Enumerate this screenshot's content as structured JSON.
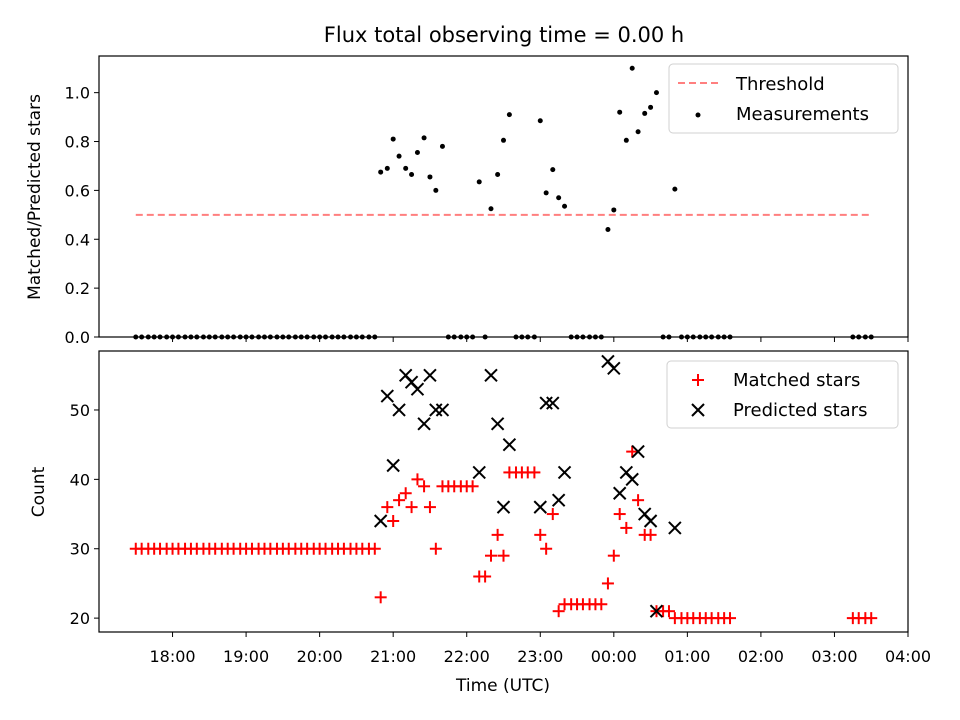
{
  "chart_data": [
    {
      "type": "scatter",
      "title": "Flux total observing time = 0.00 h",
      "xlabel": "",
      "ylabel": "Matched/Predicted stars",
      "xlim": [
        17.0,
        28.0
      ],
      "ylim": [
        0.0,
        1.15
      ],
      "yticks": [
        0.0,
        0.2,
        0.4,
        0.6,
        0.8,
        1.0
      ],
      "ytick_labels": [
        "0.0",
        "0.2",
        "0.4",
        "0.6",
        "0.8",
        "1.0"
      ],
      "threshold": {
        "name": "Threshold",
        "value": 0.5,
        "x_range": [
          17.5,
          27.5
        ],
        "color": "#ff7f7f"
      },
      "legend_position": "top-right",
      "series": [
        {
          "name": "Measurements",
          "color": "#000000",
          "marker": "dot",
          "points": [
            [
              17.5,
              0
            ],
            [
              17.58,
              0
            ],
            [
              17.67,
              0
            ],
            [
              17.75,
              0
            ],
            [
              17.83,
              0
            ],
            [
              17.92,
              0
            ],
            [
              18.0,
              0
            ],
            [
              18.08,
              0
            ],
            [
              18.17,
              0
            ],
            [
              18.25,
              0
            ],
            [
              18.33,
              0
            ],
            [
              18.42,
              0
            ],
            [
              18.5,
              0
            ],
            [
              18.58,
              0
            ],
            [
              18.67,
              0
            ],
            [
              18.75,
              0
            ],
            [
              18.83,
              0
            ],
            [
              18.92,
              0
            ],
            [
              19.0,
              0
            ],
            [
              19.08,
              0
            ],
            [
              19.17,
              0
            ],
            [
              19.25,
              0
            ],
            [
              19.33,
              0
            ],
            [
              19.42,
              0
            ],
            [
              19.5,
              0
            ],
            [
              19.58,
              0
            ],
            [
              19.67,
              0
            ],
            [
              19.75,
              0
            ],
            [
              19.83,
              0
            ],
            [
              19.92,
              0
            ],
            [
              20.0,
              0
            ],
            [
              20.08,
              0
            ],
            [
              20.17,
              0
            ],
            [
              20.25,
              0
            ],
            [
              20.33,
              0
            ],
            [
              20.42,
              0
            ],
            [
              20.5,
              0
            ],
            [
              20.58,
              0
            ],
            [
              20.67,
              0
            ],
            [
              20.75,
              0
            ],
            [
              20.83,
              0.675
            ],
            [
              20.92,
              0.69
            ],
            [
              21.0,
              0.81
            ],
            [
              21.08,
              0.74
            ],
            [
              21.17,
              0.69
            ],
            [
              21.25,
              0.665
            ],
            [
              21.33,
              0.755
            ],
            [
              21.42,
              0.815
            ],
            [
              21.5,
              0.655
            ],
            [
              21.58,
              0.6
            ],
            [
              21.67,
              0.78
            ],
            [
              21.75,
              0
            ],
            [
              21.83,
              0
            ],
            [
              21.92,
              0
            ],
            [
              22.0,
              0
            ],
            [
              22.08,
              0
            ],
            [
              22.17,
              0.635
            ],
            [
              22.25,
              0
            ],
            [
              22.33,
              0.525
            ],
            [
              22.42,
              0.665
            ],
            [
              22.5,
              0.805
            ],
            [
              22.58,
              0.91
            ],
            [
              22.67,
              0
            ],
            [
              22.75,
              0
            ],
            [
              22.83,
              0
            ],
            [
              22.92,
              0
            ],
            [
              23.0,
              0.885
            ],
            [
              23.08,
              0.59
            ],
            [
              23.17,
              0.685
            ],
            [
              23.25,
              0.57
            ],
            [
              23.33,
              0.535
            ],
            [
              23.42,
              0
            ],
            [
              23.5,
              0
            ],
            [
              23.58,
              0
            ],
            [
              23.67,
              0
            ],
            [
              23.75,
              0
            ],
            [
              23.83,
              0
            ],
            [
              23.92,
              0.44
            ],
            [
              24.0,
              0.52
            ],
            [
              24.08,
              0.92
            ],
            [
              24.17,
              0.805
            ],
            [
              24.25,
              1.1
            ],
            [
              24.33,
              0.84
            ],
            [
              24.42,
              0.915
            ],
            [
              24.5,
              0.94
            ],
            [
              24.58,
              1.0
            ],
            [
              24.67,
              0
            ],
            [
              24.75,
              0
            ],
            [
              24.83,
              0.605
            ],
            [
              24.92,
              0
            ],
            [
              25.0,
              0
            ],
            [
              25.08,
              0
            ],
            [
              25.17,
              0
            ],
            [
              25.25,
              0
            ],
            [
              25.33,
              0
            ],
            [
              25.42,
              0
            ],
            [
              25.5,
              0
            ],
            [
              25.58,
              0
            ],
            [
              27.25,
              0
            ],
            [
              27.33,
              0
            ],
            [
              27.42,
              0
            ],
            [
              27.5,
              0
            ]
          ]
        }
      ]
    },
    {
      "type": "scatter",
      "title": "",
      "xlabel": "Time (UTC)",
      "ylabel": "Count",
      "xlim": [
        17.0,
        28.0
      ],
      "ylim": [
        18.0,
        58.5
      ],
      "yticks": [
        20,
        30,
        40,
        50
      ],
      "ytick_labels": [
        "20",
        "30",
        "40",
        "50"
      ],
      "xticks": [
        18,
        19,
        20,
        21,
        22,
        23,
        24,
        25,
        26,
        27,
        28
      ],
      "xtick_labels": [
        "18:00",
        "19:00",
        "20:00",
        "21:00",
        "22:00",
        "23:00",
        "00:00",
        "01:00",
        "02:00",
        "03:00",
        "04:00"
      ],
      "legend_position": "top-right",
      "series": [
        {
          "name": "Matched stars",
          "color": "#ff0000",
          "marker": "plus",
          "points": [
            [
              17.5,
              30
            ],
            [
              17.58,
              30
            ],
            [
              17.67,
              30
            ],
            [
              17.75,
              30
            ],
            [
              17.83,
              30
            ],
            [
              17.92,
              30
            ],
            [
              18.0,
              30
            ],
            [
              18.08,
              30
            ],
            [
              18.17,
              30
            ],
            [
              18.25,
              30
            ],
            [
              18.33,
              30
            ],
            [
              18.42,
              30
            ],
            [
              18.5,
              30
            ],
            [
              18.58,
              30
            ],
            [
              18.67,
              30
            ],
            [
              18.75,
              30
            ],
            [
              18.83,
              30
            ],
            [
              18.92,
              30
            ],
            [
              19.0,
              30
            ],
            [
              19.08,
              30
            ],
            [
              19.17,
              30
            ],
            [
              19.25,
              30
            ],
            [
              19.33,
              30
            ],
            [
              19.42,
              30
            ],
            [
              19.5,
              30
            ],
            [
              19.58,
              30
            ],
            [
              19.67,
              30
            ],
            [
              19.75,
              30
            ],
            [
              19.83,
              30
            ],
            [
              19.92,
              30
            ],
            [
              20.0,
              30
            ],
            [
              20.08,
              30
            ],
            [
              20.17,
              30
            ],
            [
              20.25,
              30
            ],
            [
              20.33,
              30
            ],
            [
              20.42,
              30
            ],
            [
              20.5,
              30
            ],
            [
              20.58,
              30
            ],
            [
              20.67,
              30
            ],
            [
              20.75,
              30
            ],
            [
              20.83,
              23
            ],
            [
              20.92,
              36
            ],
            [
              21.0,
              34
            ],
            [
              21.08,
              37
            ],
            [
              21.17,
              38
            ],
            [
              21.25,
              36
            ],
            [
              21.33,
              40
            ],
            [
              21.42,
              39
            ],
            [
              21.5,
              36
            ],
            [
              21.58,
              30
            ],
            [
              21.67,
              39
            ],
            [
              21.75,
              39
            ],
            [
              21.83,
              39
            ],
            [
              21.92,
              39
            ],
            [
              22.0,
              39
            ],
            [
              22.08,
              39
            ],
            [
              22.17,
              26
            ],
            [
              22.25,
              26
            ],
            [
              22.33,
              29
            ],
            [
              22.42,
              32
            ],
            [
              22.5,
              29
            ],
            [
              22.58,
              41
            ],
            [
              22.67,
              41
            ],
            [
              22.75,
              41
            ],
            [
              22.83,
              41
            ],
            [
              22.92,
              41
            ],
            [
              23.0,
              32
            ],
            [
              23.08,
              30
            ],
            [
              23.17,
              35
            ],
            [
              23.25,
              21
            ],
            [
              23.33,
              22
            ],
            [
              23.42,
              22
            ],
            [
              23.5,
              22
            ],
            [
              23.58,
              22
            ],
            [
              23.67,
              22
            ],
            [
              23.75,
              22
            ],
            [
              23.83,
              22
            ],
            [
              23.92,
              25
            ],
            [
              24.0,
              29
            ],
            [
              24.08,
              35
            ],
            [
              24.17,
              33
            ],
            [
              24.25,
              44
            ],
            [
              24.33,
              37
            ],
            [
              24.42,
              32
            ],
            [
              24.5,
              32
            ],
            [
              24.58,
              21
            ],
            [
              24.67,
              21
            ],
            [
              24.75,
              21
            ],
            [
              24.83,
              20
            ],
            [
              24.92,
              20
            ],
            [
              25.0,
              20
            ],
            [
              25.08,
              20
            ],
            [
              25.17,
              20
            ],
            [
              25.25,
              20
            ],
            [
              25.33,
              20
            ],
            [
              25.42,
              20
            ],
            [
              25.5,
              20
            ],
            [
              25.58,
              20
            ],
            [
              27.25,
              20
            ],
            [
              27.33,
              20
            ],
            [
              27.42,
              20
            ],
            [
              27.5,
              20
            ]
          ]
        },
        {
          "name": "Predicted stars",
          "color": "#000000",
          "marker": "x",
          "points": [
            [
              20.83,
              34
            ],
            [
              20.92,
              52
            ],
            [
              21.0,
              42
            ],
            [
              21.08,
              50
            ],
            [
              21.17,
              55
            ],
            [
              21.25,
              54
            ],
            [
              21.33,
              53
            ],
            [
              21.42,
              48
            ],
            [
              21.5,
              55
            ],
            [
              21.58,
              50
            ],
            [
              21.67,
              50
            ],
            [
              22.17,
              41
            ],
            [
              22.33,
              55
            ],
            [
              22.42,
              48
            ],
            [
              22.5,
              36
            ],
            [
              22.58,
              45
            ],
            [
              23.0,
              36
            ],
            [
              23.08,
              51
            ],
            [
              23.17,
              51
            ],
            [
              23.25,
              37
            ],
            [
              23.33,
              41
            ],
            [
              23.92,
              57
            ],
            [
              24.0,
              56
            ],
            [
              24.08,
              38
            ],
            [
              24.17,
              41
            ],
            [
              24.25,
              40
            ],
            [
              24.33,
              44
            ],
            [
              24.42,
              35
            ],
            [
              24.5,
              34
            ],
            [
              24.58,
              21
            ],
            [
              24.83,
              33
            ]
          ]
        }
      ]
    }
  ]
}
